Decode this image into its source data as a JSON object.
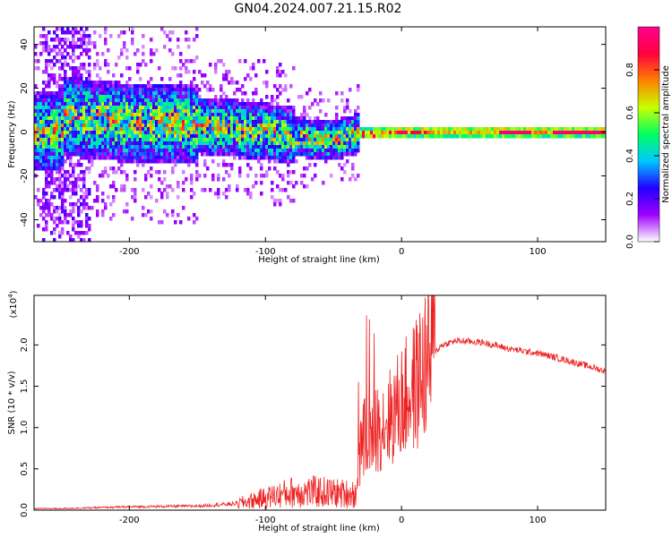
{
  "title": "GN04.2024.007.21.15.R02",
  "chart_data": [
    {
      "type": "heatmap",
      "xlabel": "Height of straight line (km)",
      "ylabel": "Frequency (Hz)",
      "xlim": [
        -270,
        150
      ],
      "ylim": [
        -50,
        48
      ],
      "xticks": [
        -200,
        -100,
        0,
        100
      ],
      "yticks": [
        -40,
        -20,
        0,
        20,
        40
      ],
      "colorbar": {
        "label": "Normalized spectral amplitude",
        "range": [
          0,
          1
        ],
        "ticks": [
          "0.0",
          "0.2",
          "0.4",
          "0.6",
          "0.8"
        ],
        "colors": [
          "#ffffff",
          "#a000ff",
          "#2000ff",
          "#00c8ff",
          "#00ff60",
          "#c8ff00",
          "#ff8000",
          "#ff0040",
          "#ff0090"
        ]
      },
      "ridge": {
        "x": [
          -250,
          -200,
          -150,
          -100,
          -70,
          -50,
          -35,
          -20,
          0,
          40,
          80,
          120,
          150
        ],
        "center_hz": [
          8,
          5,
          4,
          1,
          -2,
          -3,
          0,
          0,
          1,
          1,
          1,
          1,
          1
        ]
      },
      "grid": false
    },
    {
      "type": "line",
      "xlabel": "Height of straight line (km)",
      "ylabel": "SNR (10 * v/v)",
      "yscale_label": "(x10",
      "yscale_exp": "4",
      "xlim": [
        -270,
        150
      ],
      "ylim": [
        0,
        2.6
      ],
      "xticks": [
        -200,
        -100,
        0,
        100
      ],
      "yticks": [
        "0.0",
        "0.5",
        "1.0",
        "1.5",
        "2.0"
      ],
      "ytick_values": [
        0,
        0.5,
        1.0,
        1.5,
        2.0
      ],
      "series": [
        {
          "color": "#ee2222",
          "x": [
            -270,
            -250,
            -200,
            -150,
            -120,
            -100,
            -80,
            -60,
            -45,
            -33,
            -30,
            -28,
            -25,
            -20,
            -15,
            -10,
            -5,
            0,
            10,
            20,
            30,
            40,
            60,
            80,
            100,
            120,
            140,
            150
          ],
          "y": [
            0.02,
            0.02,
            0.04,
            0.05,
            0.08,
            0.15,
            0.22,
            0.22,
            0.2,
            0.2,
            0.7,
            0.9,
            0.8,
            0.95,
            1.05,
            1.1,
            1.2,
            1.3,
            1.5,
            1.85,
            2.0,
            2.05,
            2.03,
            1.95,
            1.9,
            1.82,
            1.73,
            1.68
          ]
        }
      ],
      "grid": false
    }
  ]
}
